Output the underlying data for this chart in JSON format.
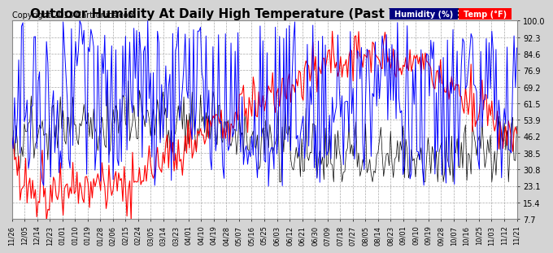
{
  "title": "Outdoor Humidity At Daily High Temperature (Past Year) 20131126",
  "copyright": "Copyright 2013 Cartronics.com",
  "background_color": "#d4d4d4",
  "plot_bg_color": "#ffffff",
  "y_ticks": [
    7.7,
    15.4,
    23.1,
    30.8,
    38.5,
    46.2,
    53.9,
    61.5,
    69.2,
    76.9,
    84.6,
    92.3,
    100.0
  ],
  "x_labels": [
    "11/26",
    "12/05",
    "12/14",
    "12/23",
    "01/01",
    "01/10",
    "01/19",
    "01/28",
    "02/06",
    "02/15",
    "02/24",
    "03/05",
    "03/14",
    "03/23",
    "04/01",
    "04/10",
    "04/19",
    "04/28",
    "05/07",
    "05/16",
    "05/25",
    "06/03",
    "06/12",
    "06/21",
    "06/30",
    "07/09",
    "07/18",
    "07/27",
    "08/05",
    "08/14",
    "08/23",
    "09/01",
    "09/10",
    "09/19",
    "09/28",
    "10/07",
    "10/16",
    "10/25",
    "11/03",
    "11/12",
    "11/21"
  ],
  "legend_bg_humidity": "#000080",
  "legend_bg_temp": "#ff0000",
  "grid_color": "#aaaaaa",
  "line_humidity_color": "#0000ff",
  "line_temp_color": "#ff0000",
  "line_black_color": "#000000",
  "ylim": [
    7.7,
    100.0
  ],
  "title_fontsize": 11,
  "copyright_fontsize": 7,
  "tick_fontsize": 7,
  "legend_fontsize": 7
}
